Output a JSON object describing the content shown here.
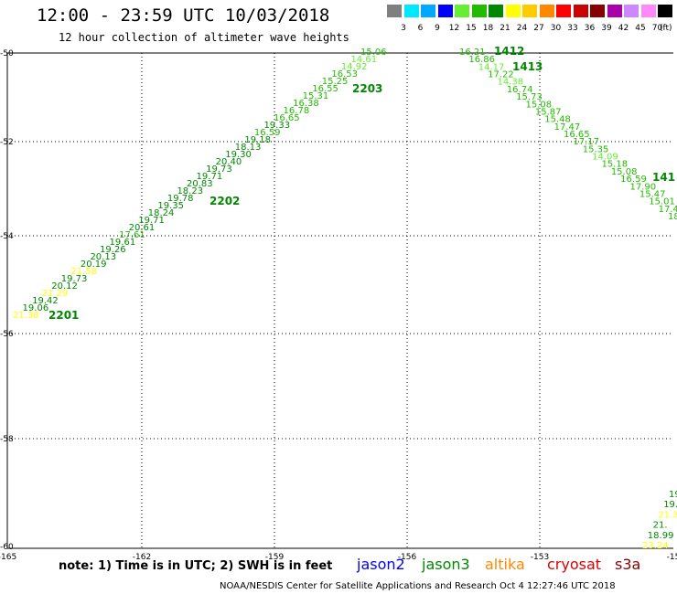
{
  "header": {
    "title": "12:00 - 23:59 UTC 10/03/2018",
    "subtitle": "12 hour collection of altimeter wave heights"
  },
  "color_scale": {
    "unit": "(ft)",
    "bins": [
      {
        "label": "3",
        "color": "#7f7f7f"
      },
      {
        "label": "6",
        "color": "#00e8ff"
      },
      {
        "label": "9",
        "color": "#00a8ff"
      },
      {
        "label": "12",
        "color": "#0000ff"
      },
      {
        "label": "15",
        "color": "#66ee33"
      },
      {
        "label": "18",
        "color": "#22bb00"
      },
      {
        "label": "21",
        "color": "#008800"
      },
      {
        "label": "24",
        "color": "#ffff00"
      },
      {
        "label": "27",
        "color": "#ffcc00"
      },
      {
        "label": "30",
        "color": "#ff8800"
      },
      {
        "label": "33",
        "color": "#ff0000"
      },
      {
        "label": "36",
        "color": "#cc0000"
      },
      {
        "label": "39",
        "color": "#880000"
      },
      {
        "label": "42",
        "color": "#aa00aa"
      },
      {
        "label": "45",
        "color": "#cc88ff"
      },
      {
        "label": "70",
        "color": "#ff88ff"
      },
      {
        "label": "",
        "color": "#000000"
      }
    ]
  },
  "map": {
    "lat_labels": [
      "-50",
      "-52",
      "-54",
      "-56",
      "-58",
      "-60"
    ],
    "lon_labels": [
      "-165",
      "-162",
      "-159",
      "-156",
      "-153",
      "-15"
    ],
    "track_labels": [
      {
        "text": "2201",
        "color": "#008800"
      },
      {
        "text": "2202",
        "color": "#008800"
      },
      {
        "text": "2203",
        "color": "#008800"
      },
      {
        "text": "1412",
        "color": "#008800"
      },
      {
        "text": "1413",
        "color": "#008800"
      },
      {
        "text": "141",
        "color": "#008800"
      }
    ],
    "track_a_values": [
      "21.38",
      "19.06",
      "19.42",
      "21.29",
      "20.12",
      "19.73",
      "21.58",
      "20.19",
      "20.13",
      "19.26",
      "19.61",
      "17.61",
      "20.61",
      "19.71",
      "18.24",
      "19.35",
      "19.78",
      "18.23",
      "20.83",
      "19.71",
      "19.73",
      "20.40",
      "19.30",
      "18.13",
      "19.18",
      "16.59",
      "19.33",
      "16.65",
      "16.78",
      "16.38",
      "15.31",
      "16.55",
      "15.25",
      "16.53",
      "14.92",
      "14.61",
      "15.06"
    ],
    "track_b_values": [
      "16.21",
      "16.86",
      "14.17",
      "17.22",
      "14.38",
      "16.74",
      "15.73",
      "15.08",
      "15.87",
      "15.48",
      "17.47",
      "16.65",
      "17.17",
      "15.35",
      "14.09",
      "15.18",
      "15.08",
      "16.59",
      "17.90",
      "15.47",
      "15.01",
      "17.4",
      "18"
    ],
    "track_c_values": [
      "19",
      "19.",
      "21.3",
      "21.",
      "18.99",
      "23.24"
    ]
  },
  "footer": {
    "note": "note: 1) Time is in UTC; 2) SWH is in feet",
    "legend": [
      {
        "text": "jason2",
        "color": "#0000ff"
      },
      {
        "text": "jason3",
        "color": "#008800"
      },
      {
        "text": "altika",
        "color": "#ff8800"
      },
      {
        "text": "cryosat",
        "color": "#dd0000"
      },
      {
        "text": "s3a",
        "color": "#880000"
      }
    ],
    "credit": "NOAA/NESDIS Center for Satellite Applications and Research    Oct  4 12:27:46 UTC 2018"
  }
}
